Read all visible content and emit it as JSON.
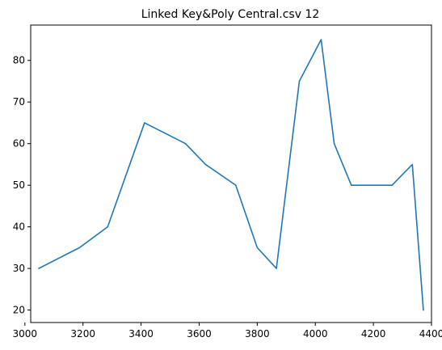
{
  "chart_data": {
    "type": "line",
    "title": "Linked Key&Poly Central.csv 12",
    "xlabel": "",
    "ylabel": "",
    "xlim": [
      3020,
      4400
    ],
    "ylim": [
      17,
      88.5
    ],
    "xticks": [
      3000,
      3200,
      3400,
      3600,
      3800,
      4000,
      4200,
      4400
    ],
    "xtick_labels": [
      "3000",
      "3200",
      "3400",
      "3600",
      "3800",
      "4000",
      "4200",
      "4400"
    ],
    "yticks": [
      20,
      30,
      40,
      50,
      60,
      70,
      80
    ],
    "ytick_labels": [
      "20",
      "30",
      "40",
      "50",
      "60",
      "70",
      "80"
    ],
    "grid": false,
    "legend": false,
    "colors": {
      "line": "#1f77b4",
      "axes": "#000000",
      "background": "#ffffff"
    },
    "x": [
      3048,
      3188,
      3285,
      3412,
      3553,
      3622,
      3726,
      3800,
      3866,
      3945,
      4020,
      4065,
      4124,
      4264,
      4334,
      4372
    ],
    "series": [
      {
        "values": [
          30,
          35,
          40,
          65,
          60,
          55,
          50,
          35,
          30,
          75,
          85,
          60,
          50,
          50,
          55,
          20
        ]
      }
    ]
  }
}
